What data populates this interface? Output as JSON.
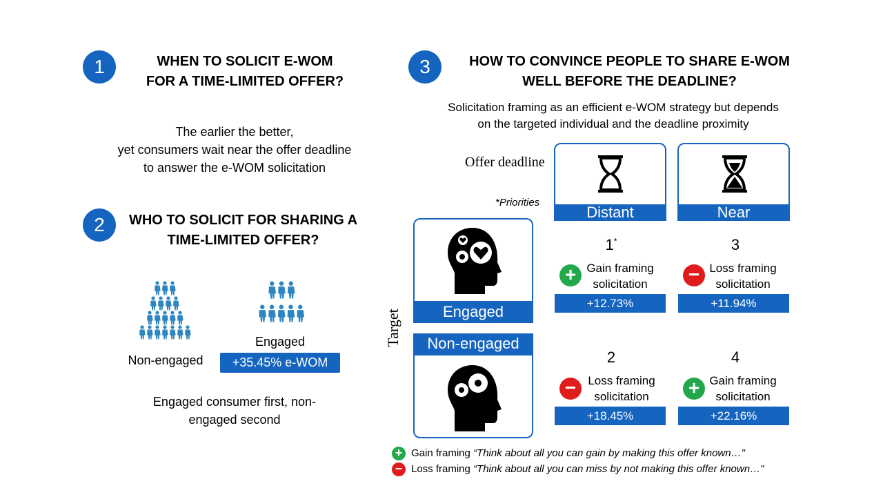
{
  "section1": {
    "number": "1",
    "title_line1": "WHEN TO SOLICIT E-WOM",
    "title_line2": "FOR A TIME-LIMITED OFFER?",
    "text_line1": "The earlier the better,",
    "text_line2": "yet consumers wait near the offer deadline",
    "text_line3": "to answer the e-WOM solicitation"
  },
  "section2": {
    "number": "2",
    "title_line1": "WHO TO SOLICIT FOR SHARING A",
    "title_line2": "TIME-LIMITED OFFER?",
    "non_engaged_label": "Non-engaged",
    "engaged_label": "Engaged",
    "engaged_badge": "+35.45% e-WOM",
    "conclusion_line1": "Engaged consumer first, non-",
    "conclusion_line2": "engaged second"
  },
  "section3": {
    "number": "3",
    "title_line1": "HOW TO CONVINCE PEOPLE TO SHARE E-WOM",
    "title_line2": "WELL BEFORE THE DEADLINE?",
    "subtitle_line1": "Solicitation framing as an efficient e-WOM strategy but depends",
    "subtitle_line2": "on the targeted individual and the deadline proximity",
    "offer_deadline_label": "Offer deadline",
    "priorities_note": "*Priorities",
    "target_label": "Target",
    "deadline_distant": "Distant",
    "deadline_near": "Near",
    "target_engaged": "Engaged",
    "target_non_engaged": "Non-engaged",
    "cells": [
      {
        "priority": "1",
        "priority_mark": "*",
        "sign": "plus",
        "framing_line1": "Gain framing",
        "framing_line2": "solicitation",
        "value": "+12.73%"
      },
      {
        "priority": "3",
        "priority_mark": "",
        "sign": "minus",
        "framing_line1": "Loss framing",
        "framing_line2": "solicitation",
        "value": "+11.94%"
      },
      {
        "priority": "2",
        "priority_mark": "",
        "sign": "minus",
        "framing_line1": "Loss framing",
        "framing_line2": "solicitation",
        "value": "+18.45%"
      },
      {
        "priority": "4",
        "priority_mark": "",
        "sign": "plus",
        "framing_line1": "Gain framing",
        "framing_line2": "solicitation",
        "value": "+22.16%"
      }
    ]
  },
  "legend": {
    "gain_label": "Gain framing",
    "gain_quote": "“Think about all you can gain by making this offer known…\"",
    "loss_label": "Loss framing",
    "loss_quote": "“Think about all you can miss by not making this offer known…\""
  },
  "colors": {
    "accent_blue": "#1565c0",
    "people_blue": "#2e86c1",
    "gain_green": "#22a84a",
    "loss_red": "#e01b1b"
  }
}
